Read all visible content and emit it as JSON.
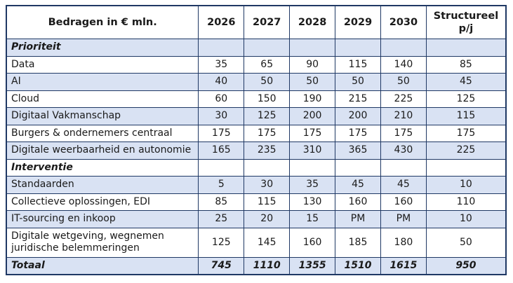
{
  "table": {
    "columns": [
      "Bedragen in € mln.",
      "2026",
      "2027",
      "2028",
      "2029",
      "2030",
      "Structureel p/j"
    ],
    "rows": [
      {
        "label": "Prioriteit",
        "type": "section",
        "values": [
          "",
          "",
          "",
          "",
          "",
          ""
        ]
      },
      {
        "label": "Data",
        "type": "data",
        "values": [
          "35",
          "65",
          "90",
          "115",
          "140",
          "85"
        ]
      },
      {
        "label": "AI",
        "type": "data",
        "values": [
          "40",
          "50",
          "50",
          "50",
          "50",
          "45"
        ]
      },
      {
        "label": "Cloud",
        "type": "data",
        "values": [
          "60",
          "150",
          "190",
          "215",
          "225",
          "125"
        ]
      },
      {
        "label": "Digitaal Vakmanschap",
        "type": "data",
        "values": [
          "30",
          "125",
          "200",
          "200",
          "210",
          "115"
        ]
      },
      {
        "label": "Burgers & ondernemers centraal",
        "type": "data",
        "values": [
          "175",
          "175",
          "175",
          "175",
          "175",
          "175"
        ]
      },
      {
        "label": "Digitale weerbaarheid en autonomie",
        "type": "data",
        "values": [
          "165",
          "235",
          "310",
          "365",
          "430",
          "225"
        ]
      },
      {
        "label": "Interventie",
        "type": "section",
        "values": [
          "",
          "",
          "",
          "",
          "",
          ""
        ]
      },
      {
        "label": "Standaarden",
        "type": "data",
        "values": [
          "5",
          "30",
          "35",
          "45",
          "45",
          "10"
        ]
      },
      {
        "label": "Collectieve oplossingen, EDI",
        "type": "data",
        "values": [
          "85",
          "115",
          "130",
          "160",
          "160",
          "110"
        ]
      },
      {
        "label": "IT-sourcing en inkoop",
        "type": "data",
        "values": [
          "25",
          "20",
          "15",
          "PM",
          "PM",
          "10"
        ]
      },
      {
        "label": "Digitale wetgeving, wegnemen juridische  belemmeringen",
        "type": "data",
        "values": [
          "125",
          "145",
          "160",
          "185",
          "180",
          "50"
        ]
      },
      {
        "label": "Totaal",
        "type": "total",
        "values": [
          "745",
          "1110",
          "1355",
          "1510",
          "1615",
          "950"
        ]
      }
    ]
  },
  "colors": {
    "shaded_row": "#d9e2f3",
    "border": "#1f3864",
    "text": "#1a1a1a"
  }
}
